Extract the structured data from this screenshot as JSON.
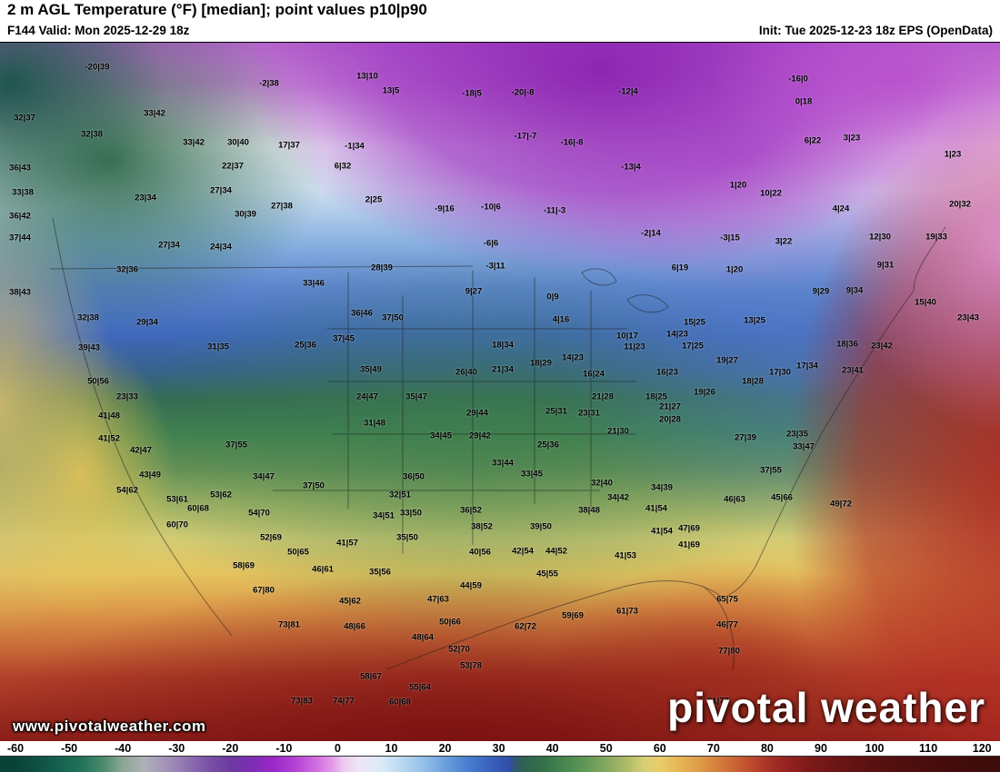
{
  "header": {
    "title": "2 m AGL Temperature (°F) [median]; point values p10|p90",
    "valid": "F144 Valid: Mon 2025-12-29 18z",
    "init": "Init: Tue 2025-12-23 18z EPS (OpenData)"
  },
  "watermark": "www.pivotalweather.com",
  "logo": "pivotal weather",
  "colorbar": {
    "min": -60,
    "max": 120,
    "units": "°F",
    "ticks": [
      -60,
      -50,
      -40,
      -30,
      -20,
      -10,
      0,
      10,
      20,
      30,
      40,
      50,
      60,
      70,
      80,
      90,
      100,
      110,
      120
    ],
    "stops": [
      [
        -60,
        "#0a4238"
      ],
      [
        -54,
        "#11584a"
      ],
      [
        -48,
        "#1f7258"
      ],
      [
        -44,
        "#47886a"
      ],
      [
        -40,
        "#8aa893"
      ],
      [
        -36,
        "#aeb0b6"
      ],
      [
        -32,
        "#a393b8"
      ],
      [
        -28,
        "#8f72b0"
      ],
      [
        -24,
        "#7a51a6"
      ],
      [
        -20,
        "#6b3aa0"
      ],
      [
        -16,
        "#7c2cb4"
      ],
      [
        -12,
        "#9a28c8"
      ],
      [
        -8,
        "#b441d4"
      ],
      [
        -4,
        "#d06ee0"
      ],
      [
        -1,
        "#e49ae8"
      ],
      [
        1,
        "#eccaf0"
      ],
      [
        4,
        "#eee6f6"
      ],
      [
        8,
        "#dcebf8"
      ],
      [
        12,
        "#b9d8f1"
      ],
      [
        16,
        "#93c0ea"
      ],
      [
        20,
        "#6ba0dd"
      ],
      [
        24,
        "#4b7fd0"
      ],
      [
        28,
        "#3a64c0"
      ],
      [
        32,
        "#2e4fa8"
      ],
      [
        33,
        "#31566e"
      ],
      [
        35,
        "#2f6350"
      ],
      [
        38,
        "#336f48"
      ],
      [
        42,
        "#46854f"
      ],
      [
        46,
        "#609756"
      ],
      [
        50,
        "#84a85e"
      ],
      [
        54,
        "#afbc68"
      ],
      [
        57,
        "#d6cf78"
      ],
      [
        60,
        "#e7cd69"
      ],
      [
        64,
        "#e5b354"
      ],
      [
        68,
        "#dd9646"
      ],
      [
        72,
        "#d1753a"
      ],
      [
        76,
        "#c1532f"
      ],
      [
        80,
        "#a93426"
      ],
      [
        84,
        "#92221e"
      ],
      [
        88,
        "#7c1a1a"
      ],
      [
        94,
        "#691414"
      ],
      [
        100,
        "#591010"
      ],
      [
        110,
        "#490d0d"
      ],
      [
        120,
        "#3e0b0b"
      ]
    ]
  },
  "map": {
    "description": "North America 2 m temperature field with p10|p90 point values",
    "points": [
      [
        107,
        74,
        "-20|39"
      ],
      [
        296,
        92,
        "-2|38"
      ],
      [
        404,
        84,
        "13|10"
      ],
      [
        430,
        100,
        "13|5"
      ],
      [
        519,
        103,
        "-18|5"
      ],
      [
        575,
        102,
        "-20|-8"
      ],
      [
        691,
        101,
        "-12|4"
      ],
      [
        878,
        87,
        "-16|0"
      ],
      [
        884,
        112,
        "0|18"
      ],
      [
        27,
        130,
        "32|37"
      ],
      [
        170,
        125,
        "33|42"
      ],
      [
        101,
        148,
        "32|38"
      ],
      [
        213,
        157,
        "33|42"
      ],
      [
        262,
        157,
        "30|40"
      ],
      [
        318,
        160,
        "17|37"
      ],
      [
        390,
        161,
        "-1|34"
      ],
      [
        578,
        150,
        "-17|-7"
      ],
      [
        629,
        157,
        "-16|-8"
      ],
      [
        894,
        155,
        "6|22"
      ],
      [
        937,
        152,
        "3|23"
      ],
      [
        1048,
        170,
        "1|23"
      ],
      [
        22,
        185,
        "36|43"
      ],
      [
        256,
        183,
        "22|37"
      ],
      [
        377,
        183,
        "6|32"
      ],
      [
        694,
        184,
        "-13|4"
      ],
      [
        25,
        212,
        "33|38"
      ],
      [
        160,
        218,
        "23|34"
      ],
      [
        243,
        210,
        "27|34"
      ],
      [
        812,
        204,
        "1|20"
      ],
      [
        848,
        213,
        "10|22"
      ],
      [
        22,
        238,
        "36|42"
      ],
      [
        270,
        236,
        "30|39"
      ],
      [
        310,
        227,
        "27|38"
      ],
      [
        411,
        220,
        "2|25"
      ],
      [
        489,
        230,
        "-9|16"
      ],
      [
        540,
        228,
        "-10|6"
      ],
      [
        610,
        232,
        "-11|-3"
      ],
      [
        925,
        230,
        "4|24"
      ],
      [
        1056,
        225,
        "20|32"
      ],
      [
        22,
        262,
        "37|44"
      ],
      [
        186,
        270,
        "27|34"
      ],
      [
        243,
        272,
        "24|34"
      ],
      [
        540,
        268,
        "-6|6"
      ],
      [
        716,
        257,
        "-2|14"
      ],
      [
        803,
        262,
        "-3|15"
      ],
      [
        862,
        266,
        "3|22"
      ],
      [
        968,
        261,
        "12|30"
      ],
      [
        1030,
        261,
        "19|33"
      ],
      [
        140,
        297,
        "32|36"
      ],
      [
        420,
        295,
        "28|39"
      ],
      [
        545,
        293,
        "-3|11"
      ],
      [
        748,
        295,
        "6|19"
      ],
      [
        808,
        297,
        "1|20"
      ],
      [
        974,
        292,
        "9|31"
      ],
      [
        22,
        322,
        "38|43"
      ],
      [
        345,
        312,
        "33|46"
      ],
      [
        521,
        321,
        "9|27"
      ],
      [
        608,
        327,
        "0|9"
      ],
      [
        903,
        321,
        "9|29"
      ],
      [
        940,
        320,
        "9|34"
      ],
      [
        1018,
        333,
        "15|40"
      ],
      [
        97,
        350,
        "32|38"
      ],
      [
        162,
        355,
        "29|34"
      ],
      [
        398,
        345,
        "36|46"
      ],
      [
        432,
        350,
        "37|50"
      ],
      [
        617,
        352,
        "4|16"
      ],
      [
        764,
        355,
        "15|25"
      ],
      [
        830,
        353,
        "13|25"
      ],
      [
        1065,
        350,
        "23|43"
      ],
      [
        240,
        382,
        "31|35"
      ],
      [
        336,
        380,
        "25|36"
      ],
      [
        378,
        373,
        "37|45"
      ],
      [
        553,
        380,
        "18|34"
      ],
      [
        690,
        370,
        "10|17"
      ],
      [
        745,
        368,
        "14|23"
      ],
      [
        698,
        382,
        "11|23"
      ],
      [
        762,
        381,
        "17|25"
      ],
      [
        800,
        397,
        "19|27"
      ],
      [
        932,
        379,
        "18|36"
      ],
      [
        970,
        381,
        "23|42"
      ],
      [
        98,
        383,
        "39|43"
      ],
      [
        408,
        407,
        "35|49"
      ],
      [
        513,
        410,
        "26|40"
      ],
      [
        553,
        407,
        "21|34"
      ],
      [
        595,
        400,
        "18|29"
      ],
      [
        630,
        394,
        "14|23"
      ],
      [
        653,
        412,
        "16|24"
      ],
      [
        734,
        410,
        "16|23"
      ],
      [
        858,
        410,
        "17|30"
      ],
      [
        888,
        403,
        "17|34"
      ],
      [
        938,
        408,
        "23|41"
      ],
      [
        108,
        420,
        "50|56"
      ],
      [
        140,
        437,
        "23|33"
      ],
      [
        404,
        437,
        "24|47"
      ],
      [
        458,
        437,
        "35|47"
      ],
      [
        663,
        437,
        "21|28"
      ],
      [
        722,
        437,
        "18|25"
      ],
      [
        775,
        432,
        "19|26"
      ],
      [
        828,
        420,
        "18|28"
      ],
      [
        120,
        458,
        "41|48"
      ],
      [
        412,
        466,
        "31|48"
      ],
      [
        525,
        455,
        "29|44"
      ],
      [
        612,
        453,
        "25|31"
      ],
      [
        648,
        455,
        "23|31"
      ],
      [
        737,
        448,
        "21|27"
      ],
      [
        737,
        462,
        "20|28"
      ],
      [
        120,
        483,
        "41|52"
      ],
      [
        155,
        496,
        "42|47"
      ],
      [
        260,
        490,
        "37|55"
      ],
      [
        485,
        480,
        "34|45"
      ],
      [
        528,
        480,
        "29|42"
      ],
      [
        603,
        490,
        "25|36"
      ],
      [
        680,
        475,
        "21|30"
      ],
      [
        820,
        482,
        "27|39"
      ],
      [
        877,
        478,
        "23|35"
      ],
      [
        884,
        492,
        "33|47"
      ],
      [
        165,
        523,
        "43|49"
      ],
      [
        290,
        525,
        "34|47"
      ],
      [
        455,
        525,
        "36|50"
      ],
      [
        553,
        510,
        "33|44"
      ],
      [
        585,
        522,
        "33|45"
      ],
      [
        848,
        518,
        "37|55"
      ],
      [
        140,
        540,
        "54|62"
      ],
      [
        195,
        550,
        "53|61"
      ],
      [
        243,
        545,
        "53|62"
      ],
      [
        345,
        535,
        "37|50"
      ],
      [
        440,
        545,
        "32|51"
      ],
      [
        662,
        532,
        "32|40"
      ],
      [
        680,
        548,
        "34|42"
      ],
      [
        728,
        537,
        "34|39"
      ],
      [
        808,
        550,
        "46|63"
      ],
      [
        860,
        548,
        "45|66"
      ],
      [
        218,
        560,
        "60|68"
      ],
      [
        285,
        565,
        "54|70"
      ],
      [
        422,
        568,
        "34|51"
      ],
      [
        452,
        565,
        "33|50"
      ],
      [
        518,
        562,
        "36|52"
      ],
      [
        648,
        562,
        "38|48"
      ],
      [
        722,
        560,
        "41|54"
      ],
      [
        925,
        555,
        "49|72"
      ],
      [
        195,
        578,
        "60|70"
      ],
      [
        298,
        592,
        "52|69"
      ],
      [
        382,
        598,
        "41|57"
      ],
      [
        448,
        592,
        "35|50"
      ],
      [
        530,
        580,
        "38|52"
      ],
      [
        595,
        580,
        "39|50"
      ],
      [
        728,
        585,
        "41|54"
      ],
      [
        758,
        582,
        "47|69"
      ],
      [
        758,
        600,
        "41|69"
      ],
      [
        328,
        608,
        "50|65"
      ],
      [
        528,
        608,
        "40|56"
      ],
      [
        575,
        607,
        "42|54"
      ],
      [
        612,
        607,
        "44|52"
      ],
      [
        688,
        612,
        "41|53"
      ],
      [
        268,
        623,
        "58|69"
      ],
      [
        355,
        627,
        "46|61"
      ],
      [
        418,
        630,
        "35|56"
      ],
      [
        602,
        632,
        "45|55"
      ],
      [
        518,
        645,
        "44|59"
      ],
      [
        290,
        650,
        "67|80"
      ],
      [
        385,
        662,
        "45|62"
      ],
      [
        482,
        660,
        "47|63"
      ],
      [
        630,
        678,
        "59|69"
      ],
      [
        690,
        673,
        "61|73"
      ],
      [
        800,
        660,
        "65|75"
      ],
      [
        318,
        688,
        "73|81"
      ],
      [
        390,
        690,
        "48|66"
      ],
      [
        495,
        685,
        "50|66"
      ],
      [
        578,
        690,
        "62|72"
      ],
      [
        800,
        688,
        "46|77"
      ],
      [
        465,
        702,
        "48|64"
      ],
      [
        505,
        715,
        "52|70"
      ],
      [
        802,
        717,
        "77|80"
      ],
      [
        518,
        733,
        "53|78"
      ],
      [
        408,
        745,
        "58|67"
      ],
      [
        462,
        757,
        "55|64"
      ],
      [
        332,
        772,
        "73|83"
      ],
      [
        378,
        772,
        "74|77"
      ],
      [
        440,
        773,
        "60|68"
      ],
      [
        790,
        772,
        "61|77"
      ]
    ]
  }
}
